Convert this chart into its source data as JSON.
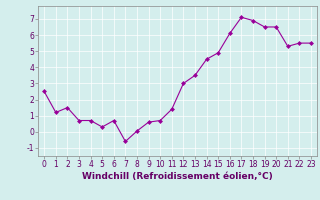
{
  "x": [
    0,
    1,
    2,
    3,
    4,
    5,
    6,
    7,
    8,
    9,
    10,
    11,
    12,
    13,
    14,
    15,
    16,
    17,
    18,
    19,
    20,
    21,
    22,
    23
  ],
  "y": [
    2.5,
    1.2,
    1.5,
    0.7,
    0.7,
    0.3,
    0.7,
    -0.6,
    0.05,
    0.6,
    0.7,
    1.4,
    3.0,
    3.5,
    4.5,
    4.9,
    6.1,
    7.1,
    6.9,
    6.5,
    6.5,
    5.3,
    5.5,
    5.5
  ],
  "line_color": "#990099",
  "marker": "D",
  "markersize": 2.0,
  "linewidth": 0.8,
  "xlabel": "Windchill (Refroidissement éolien,°C)",
  "xlabel_fontsize": 6.5,
  "xlim": [
    -0.5,
    23.5
  ],
  "ylim": [
    -1.5,
    7.8
  ],
  "yticks": [
    -1,
    0,
    1,
    2,
    3,
    4,
    5,
    6,
    7
  ],
  "xticks": [
    0,
    1,
    2,
    3,
    4,
    5,
    6,
    7,
    8,
    9,
    10,
    11,
    12,
    13,
    14,
    15,
    16,
    17,
    18,
    19,
    20,
    21,
    22,
    23
  ],
  "tick_fontsize": 5.5,
  "background_color": "#d4eeed",
  "grid_color": "#b0d8d8",
  "grid_linewidth": 0.5,
  "spine_color": "#888888"
}
